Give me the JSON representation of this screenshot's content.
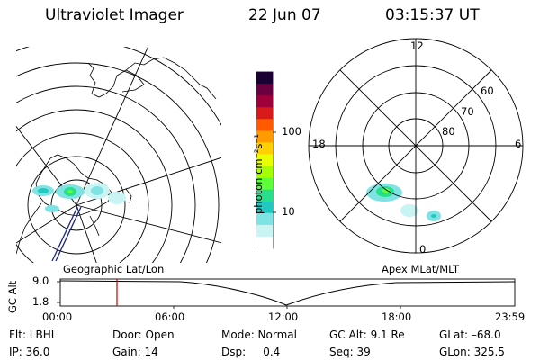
{
  "header": {
    "title": "Ultraviolet Imager",
    "date": "22 Jun 07",
    "time": "03:15:37 UT"
  },
  "left_panel": {
    "label": "Geographic Lat/Lon"
  },
  "right_panel": {
    "label": "Apex MLat/MLT",
    "mlt_labels": [
      "12",
      "18",
      "6",
      "0"
    ],
    "lat_labels": [
      "60",
      "70",
      "80"
    ]
  },
  "colorbar": {
    "unit_label": "photon cm⁻²s⁻¹",
    "ticks": [
      "100",
      "10"
    ],
    "colors": [
      "#1a0033",
      "#6a0040",
      "#a0003a",
      "#d81a1a",
      "#ff5a00",
      "#ff9a00",
      "#ffd000",
      "#e8ff00",
      "#a6ff00",
      "#5cff38",
      "#28e08c",
      "#22c9c0",
      "#7fe3e3",
      "#c8f4f4",
      "#ffffff"
    ]
  },
  "altitude_strip": {
    "ylabel": "GC Alt",
    "yticks": [
      "9.0",
      "1.8"
    ],
    "xticks": [
      "00:00",
      "06:00",
      "12:00",
      "18:00",
      "23:59"
    ],
    "marker_color": "#cc0000"
  },
  "info": {
    "filter": "Flt: LBHL",
    "ip": "IP: 36.0",
    "door": "Door: Open",
    "gain": "Gain: 14",
    "mode": "Mode: Normal",
    "dsp": "Dsp:     0.4",
    "gc_alt": "GC Alt: 9.1 Re",
    "seq": "Seq: 39",
    "glat": "GLat: –68.0",
    "glon": "GLon: 325.5"
  }
}
